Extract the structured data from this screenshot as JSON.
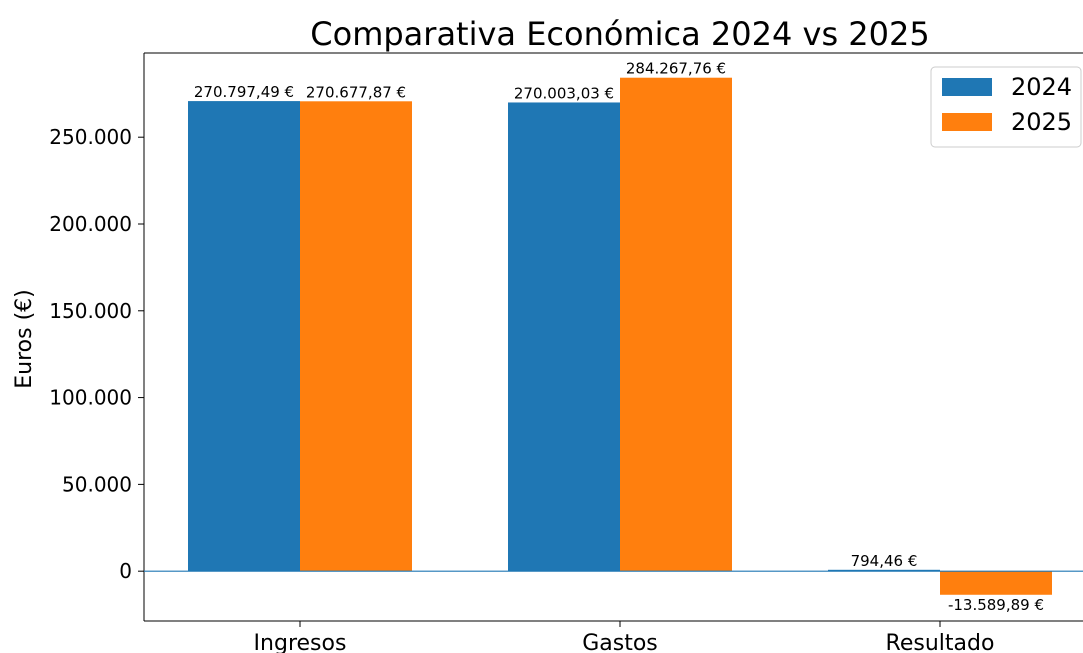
{
  "chart_data": {
    "type": "bar",
    "title": "Comparativa Económica 2024 vs 2025",
    "xlabel": "",
    "ylabel": "Euros (€)",
    "categories": [
      "Ingresos",
      "Gastos",
      "Resultado"
    ],
    "series": [
      {
        "name": "2024",
        "color": "#1f77b4",
        "values": [
          270797.49,
          270003.03,
          794.46
        ],
        "labels": [
          "270.797,49 €",
          "270.003,03 €",
          "794,46 €"
        ]
      },
      {
        "name": "2025",
        "color": "#ff7f0e",
        "values": [
          270677.87,
          284267.76,
          -13589.89
        ],
        "labels": [
          "270.677,87 €",
          "284.267,76 €",
          "-13.589,89 €"
        ]
      }
    ],
    "yticks": [
      0,
      50000,
      100000,
      150000,
      200000,
      250000
    ],
    "ytick_labels": [
      "0",
      "50.000",
      "100.000",
      "150.000",
      "200.000",
      "250.000"
    ],
    "ylim": [
      -28700,
      298500
    ],
    "grid": false,
    "legend_position": "top-right"
  }
}
